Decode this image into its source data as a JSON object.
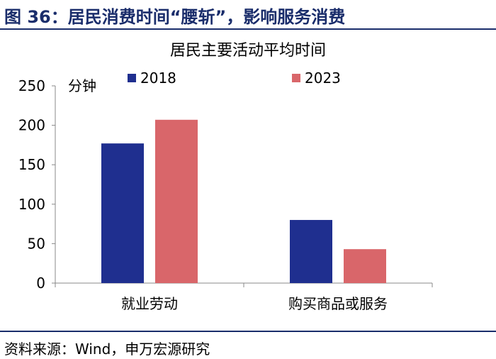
{
  "figure": {
    "title": "图 36：居民消费时间“腰斩”，影响服务消费",
    "source": "资料来源：Wind，申万宏源研究"
  },
  "chart_data": {
    "type": "bar",
    "title": "居民主要活动平均时间",
    "ylabel": "分钟",
    "xlabel": "",
    "categories": [
      "就业劳动",
      "购买商品或服务"
    ],
    "series": [
      {
        "name": "2018",
        "values": [
          177,
          80
        ],
        "color": "#1f2f8f"
      },
      {
        "name": "2023",
        "values": [
          207,
          43
        ],
        "color": "#d9666a"
      }
    ],
    "ylim": [
      0,
      250
    ],
    "yticks": [
      0,
      50,
      100,
      150,
      200,
      250
    ],
    "grid": false,
    "legend": "top"
  }
}
